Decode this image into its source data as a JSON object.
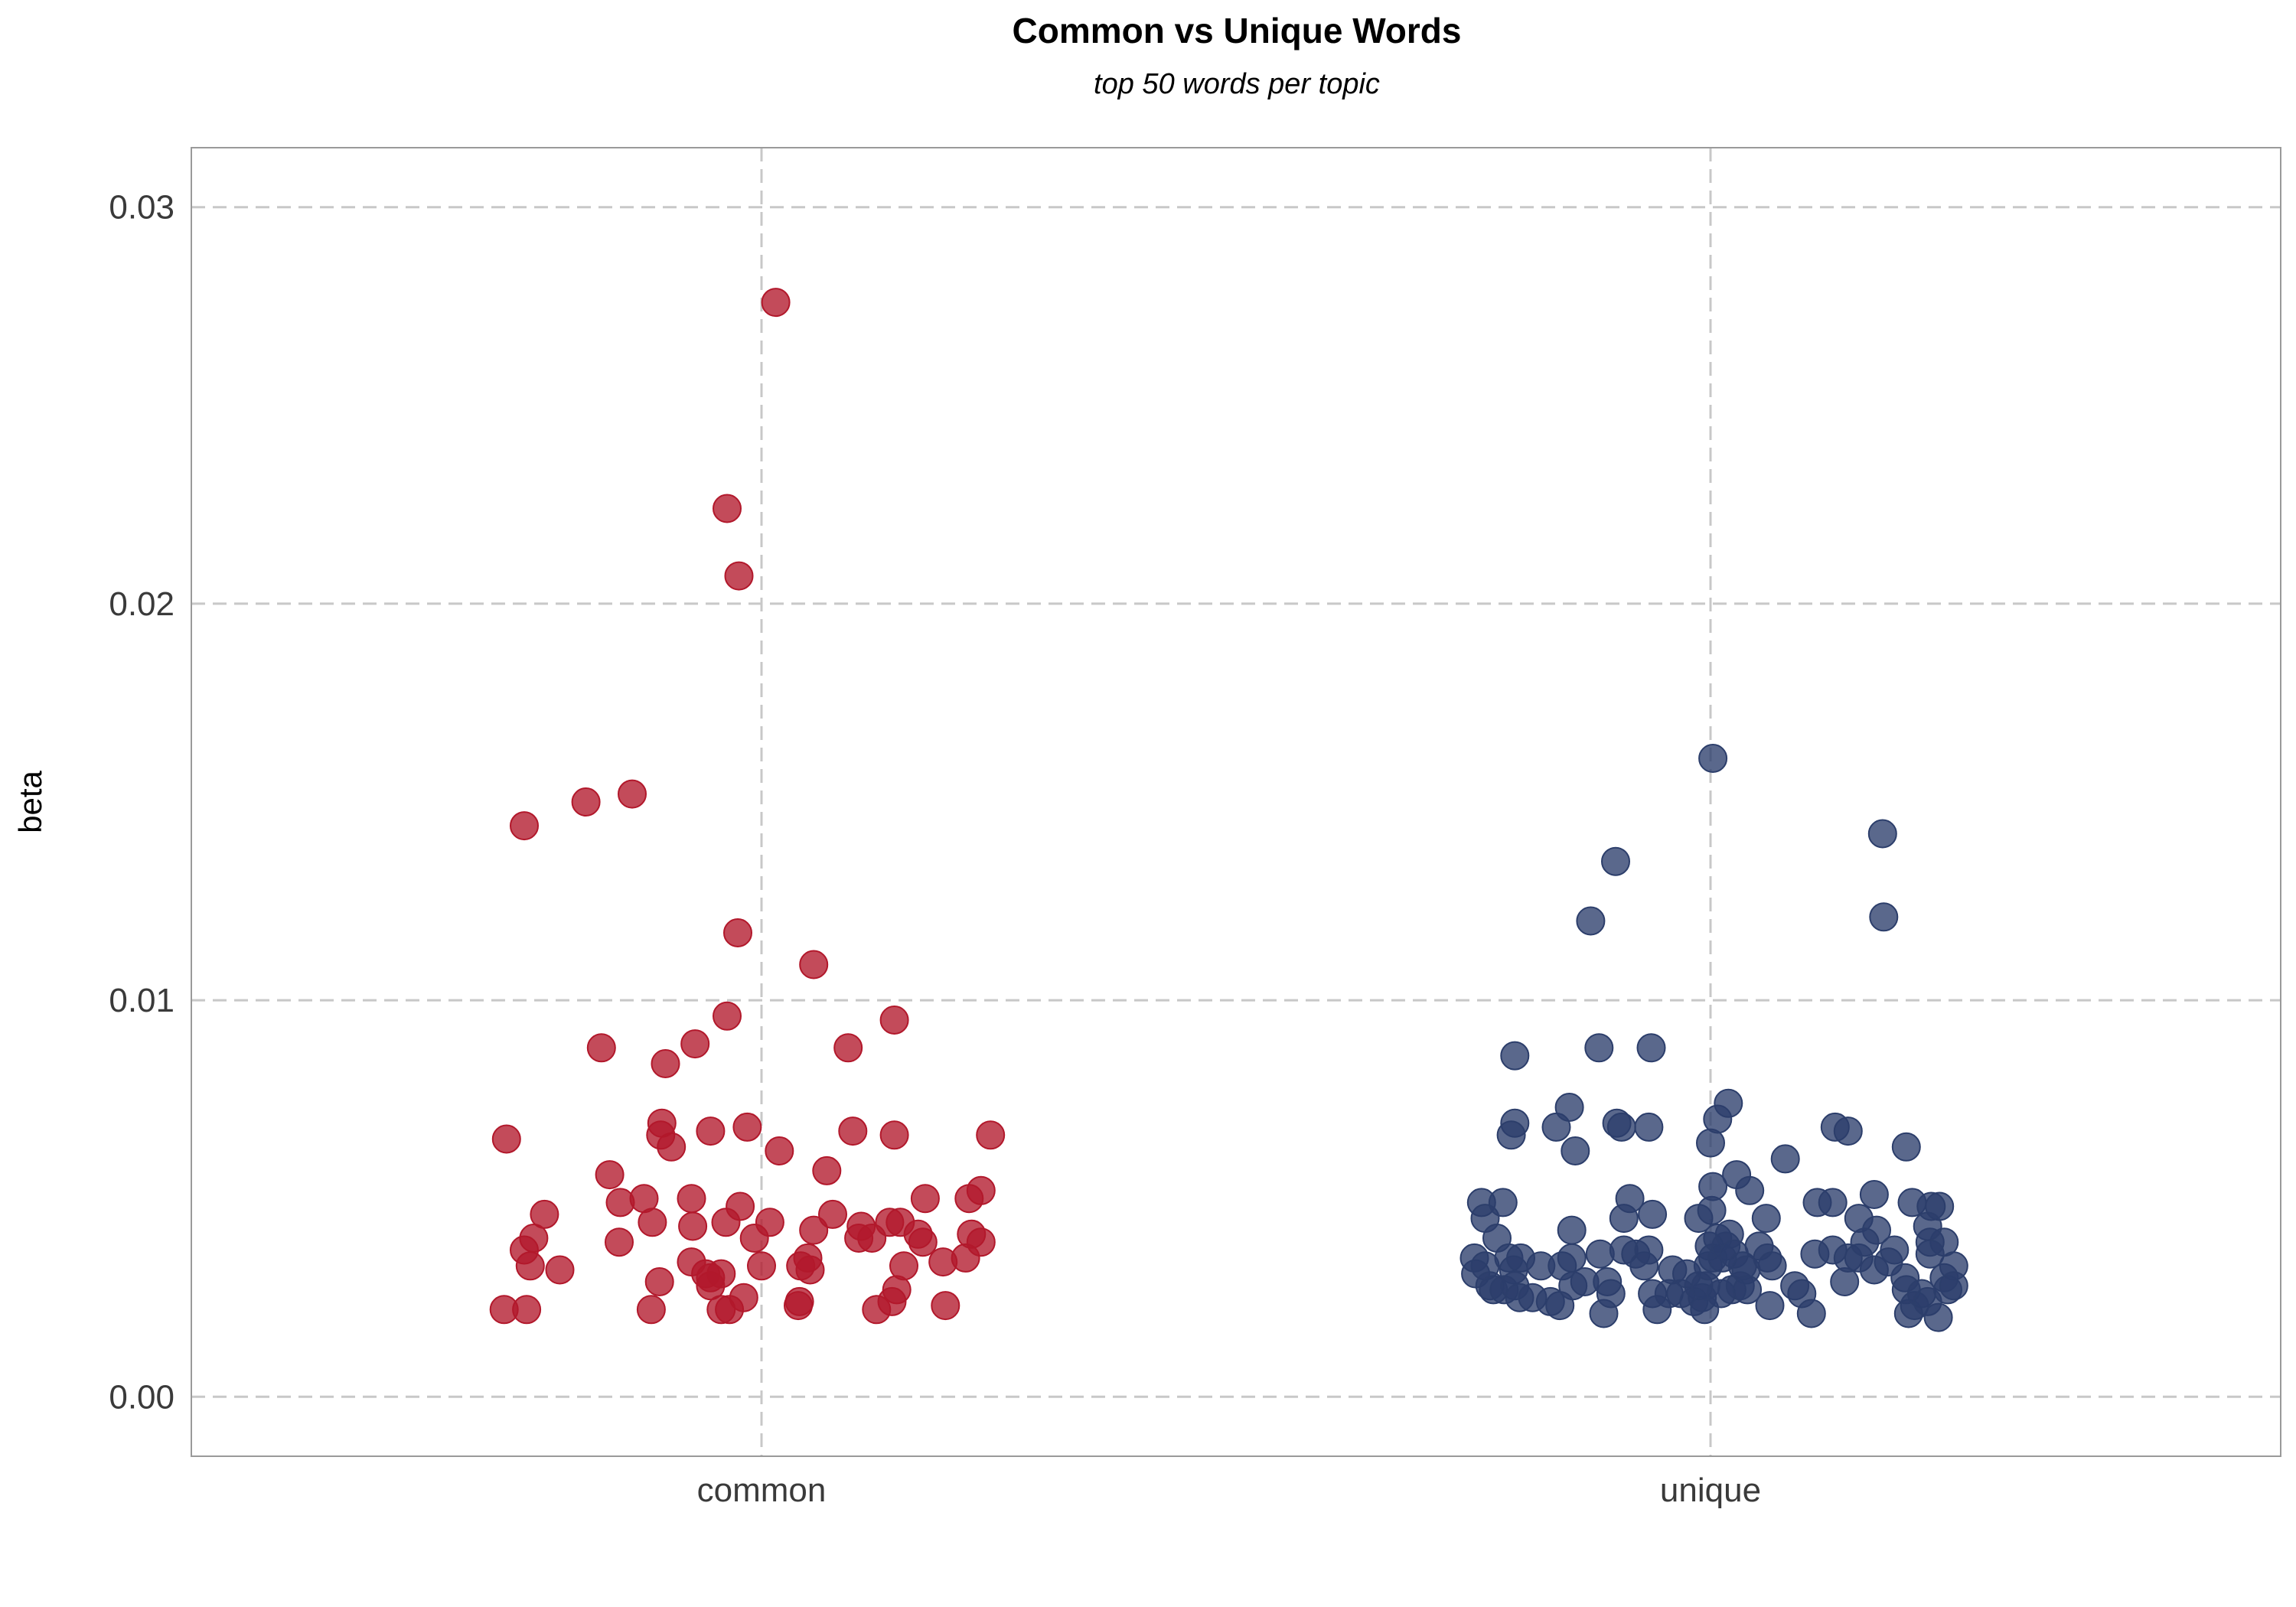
{
  "chart_data": {
    "type": "scatter",
    "title": "Common vs Unique Words",
    "subtitle": "top 50 words per topic",
    "xlabel": "",
    "ylabel": "beta",
    "categories": [
      "common",
      "unique"
    ],
    "ylim": [
      -0.0015,
      0.0315
    ],
    "yticks": [
      0.0,
      0.01,
      0.02,
      0.03
    ],
    "ytick_labels": [
      "0.00",
      "0.01",
      "0.02",
      "0.03"
    ],
    "grid": true,
    "legend": "none",
    "colors": {
      "common": "#b2182b",
      "unique": "#2c3e6b"
    },
    "series": [
      {
        "category": "common",
        "points": [
          [
            -0.4,
            0.0144
          ],
          [
            -0.296,
            0.015
          ],
          [
            -0.218,
            0.0152
          ],
          [
            -0.27,
            0.0088
          ],
          [
            -0.162,
            0.0084
          ],
          [
            -0.112,
            0.0089
          ],
          [
            -0.058,
            0.0224
          ],
          [
            -0.038,
            0.0207
          ],
          [
            -0.04,
            0.0117
          ],
          [
            -0.058,
            0.0096
          ],
          [
            0.024,
            0.0276
          ],
          [
            0.088,
            0.0109
          ],
          [
            0.146,
            0.0088
          ],
          [
            0.224,
            0.0095
          ],
          [
            -0.43,
            0.0065
          ],
          [
            -0.168,
            0.0069
          ],
          [
            -0.17,
            0.0066
          ],
          [
            -0.152,
            0.0063
          ],
          [
            -0.086,
            0.0067
          ],
          [
            -0.024,
            0.0068
          ],
          [
            0.03,
            0.0062
          ],
          [
            0.11,
            0.0057
          ],
          [
            0.154,
            0.0067
          ],
          [
            0.224,
            0.0066
          ],
          [
            0.386,
            0.0066
          ],
          [
            -0.256,
            0.0056
          ],
          [
            -0.238,
            0.0049
          ],
          [
            -0.198,
            0.005
          ],
          [
            -0.184,
            0.0044
          ],
          [
            -0.118,
            0.005
          ],
          [
            -0.116,
            0.0043
          ],
          [
            -0.06,
            0.0044
          ],
          [
            -0.036,
            0.0048
          ],
          [
            -0.012,
            0.004
          ],
          [
            0.014,
            0.0044
          ],
          [
            0.088,
            0.0042
          ],
          [
            0.12,
            0.0046
          ],
          [
            0.164,
            0.004
          ],
          [
            0.168,
            0.0043
          ],
          [
            0.186,
            0.004
          ],
          [
            0.216,
            0.0044
          ],
          [
            0.234,
            0.0044
          ],
          [
            0.264,
            0.0041
          ],
          [
            0.272,
            0.0039
          ],
          [
            0.276,
            0.005
          ],
          [
            0.35,
            0.005
          ],
          [
            0.354,
            0.0041
          ],
          [
            0.37,
            0.0052
          ],
          [
            -0.366,
            0.0046
          ],
          [
            -0.384,
            0.004
          ],
          [
            -0.4,
            0.0037
          ],
          [
            -0.39,
            0.0033
          ],
          [
            -0.34,
            0.0032
          ],
          [
            -0.24,
            0.0039
          ],
          [
            -0.172,
            0.0029
          ],
          [
            -0.118,
            0.0034
          ],
          [
            -0.094,
            0.0031
          ],
          [
            -0.086,
            0.003
          ],
          [
            -0.068,
            0.0031
          ],
          [
            -0.086,
            0.0028
          ],
          [
            0.0,
            0.0033
          ],
          [
            0.066,
            0.0033
          ],
          [
            0.078,
            0.0035
          ],
          [
            0.082,
            0.0032
          ],
          [
            0.24,
            0.0033
          ],
          [
            0.306,
            0.0034
          ],
          [
            0.344,
            0.0035
          ],
          [
            0.37,
            0.0039
          ],
          [
            -0.434,
            0.0022
          ],
          [
            -0.396,
            0.0022
          ],
          [
            -0.186,
            0.0022
          ],
          [
            -0.068,
            0.0022
          ],
          [
            -0.054,
            0.0022
          ],
          [
            -0.03,
            0.0025
          ],
          [
            0.064,
            0.0024
          ],
          [
            0.062,
            0.0023
          ],
          [
            0.194,
            0.0022
          ],
          [
            0.22,
            0.0024
          ],
          [
            0.228,
            0.0027
          ],
          [
            0.31,
            0.0023
          ]
        ]
      },
      {
        "category": "unique",
        "points": [
          [
            0.004,
            0.0161
          ],
          [
            -0.16,
            0.0135
          ],
          [
            -0.202,
            0.012
          ],
          [
            0.29,
            0.0142
          ],
          [
            0.292,
            0.0121
          ],
          [
            -0.33,
            0.0086
          ],
          [
            -0.188,
            0.0088
          ],
          [
            -0.1,
            0.0088
          ],
          [
            -0.33,
            0.0069
          ],
          [
            -0.336,
            0.0066
          ],
          [
            -0.26,
            0.0068
          ],
          [
            -0.238,
            0.0073
          ],
          [
            -0.228,
            0.0062
          ],
          [
            -0.158,
            0.0069
          ],
          [
            -0.15,
            0.0068
          ],
          [
            -0.104,
            0.0068
          ],
          [
            0.0,
            0.0064
          ],
          [
            0.012,
            0.007
          ],
          [
            0.03,
            0.0074
          ],
          [
            0.126,
            0.006
          ],
          [
            0.21,
            0.0068
          ],
          [
            0.232,
            0.0067
          ],
          [
            0.33,
            0.0063
          ],
          [
            -0.386,
            0.0049
          ],
          [
            -0.38,
            0.0045
          ],
          [
            -0.35,
            0.0049
          ],
          [
            -0.36,
            0.004
          ],
          [
            -0.234,
            0.0042
          ],
          [
            -0.186,
            0.0036
          ],
          [
            -0.146,
            0.0045
          ],
          [
            -0.136,
            0.005
          ],
          [
            -0.098,
            0.0046
          ],
          [
            -0.02,
            0.0045
          ],
          [
            0.002,
            0.0047
          ],
          [
            0.004,
            0.0053
          ],
          [
            0.044,
            0.0056
          ],
          [
            0.066,
            0.0052
          ],
          [
            0.094,
            0.0045
          ],
          [
            0.18,
            0.0049
          ],
          [
            0.206,
            0.0049
          ],
          [
            0.276,
            0.0051
          ],
          [
            0.25,
            0.0045
          ],
          [
            0.28,
            0.0042
          ],
          [
            0.34,
            0.0049
          ],
          [
            0.372,
            0.0048
          ],
          [
            0.386,
            0.0048
          ],
          [
            0.37,
            0.0039
          ],
          [
            0.394,
            0.0039
          ],
          [
            -0.396,
            0.0031
          ],
          [
            -0.398,
            0.0035
          ],
          [
            -0.38,
            0.0033
          ],
          [
            -0.372,
            0.0028
          ],
          [
            -0.366,
            0.0027
          ],
          [
            -0.348,
            0.0027
          ],
          [
            -0.34,
            0.0035
          ],
          [
            -0.332,
            0.0032
          ],
          [
            -0.33,
            0.0028
          ],
          [
            -0.322,
            0.0025
          ],
          [
            -0.32,
            0.0035
          ],
          [
            -0.3,
            0.0025
          ],
          [
            -0.286,
            0.0033
          ],
          [
            -0.27,
            0.0024
          ],
          [
            -0.254,
            0.0023
          ],
          [
            -0.25,
            0.0033
          ],
          [
            -0.234,
            0.0035
          ],
          [
            -0.232,
            0.0028
          ],
          [
            -0.212,
            0.0029
          ],
          [
            -0.18,
            0.0021
          ],
          [
            -0.174,
            0.0029
          ],
          [
            -0.168,
            0.0026
          ],
          [
            -0.146,
            0.0037
          ],
          [
            -0.126,
            0.0036
          ],
          [
            -0.112,
            0.0033
          ],
          [
            -0.104,
            0.0037
          ],
          [
            -0.098,
            0.0026
          ],
          [
            -0.09,
            0.0022
          ],
          [
            -0.07,
            0.0026
          ],
          [
            -0.064,
            0.0032
          ],
          [
            -0.05,
            0.0026
          ],
          [
            -0.04,
            0.0031
          ],
          [
            -0.028,
            0.0024
          ],
          [
            -0.02,
            0.0028
          ],
          [
            -0.014,
            0.0025
          ],
          [
            -0.01,
            0.0022
          ],
          [
            -0.008,
            0.0028
          ],
          [
            -0.004,
            0.0033
          ],
          [
            -0.002,
            0.0038
          ],
          [
            0.004,
            0.0035
          ],
          [
            0.012,
            0.004
          ],
          [
            0.018,
            0.0026
          ],
          [
            0.02,
            0.0035
          ],
          [
            0.026,
            0.0038
          ],
          [
            0.032,
            0.0041
          ],
          [
            0.036,
            0.0027
          ],
          [
            0.04,
            0.0036
          ],
          [
            0.05,
            0.0028
          ],
          [
            0.054,
            0.0033
          ],
          [
            0.06,
            0.0032
          ],
          [
            0.062,
            0.0027
          ],
          [
            0.082,
            0.0038
          ],
          [
            0.096,
            0.0035
          ],
          [
            0.104,
            0.0033
          ],
          [
            0.1,
            0.0023
          ],
          [
            0.142,
            0.0028
          ],
          [
            0.154,
            0.0026
          ],
          [
            0.17,
            0.0021
          ],
          [
            0.176,
            0.0036
          ],
          [
            0.206,
            0.0037
          ],
          [
            0.226,
            0.0029
          ],
          [
            0.232,
            0.0035
          ],
          [
            0.25,
            0.0035
          ],
          [
            0.26,
            0.0039
          ],
          [
            0.276,
            0.0032
          ],
          [
            0.3,
            0.0034
          ],
          [
            0.31,
            0.0037
          ],
          [
            0.328,
            0.003
          ],
          [
            0.33,
            0.0027
          ],
          [
            0.334,
            0.0021
          ],
          [
            0.344,
            0.0023
          ],
          [
            0.356,
            0.0026
          ],
          [
            0.366,
            0.0043
          ],
          [
            0.366,
            0.0024
          ],
          [
            0.37,
            0.0036
          ],
          [
            0.384,
            0.002
          ],
          [
            0.394,
            0.003
          ],
          [
            0.4,
            0.0027
          ],
          [
            0.41,
            0.0033
          ],
          [
            0.41,
            0.0028
          ]
        ]
      }
    ]
  }
}
